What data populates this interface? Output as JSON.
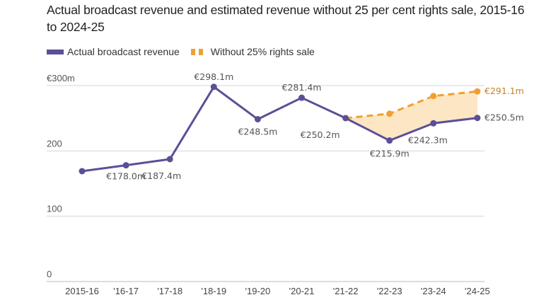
{
  "chart_data": {
    "type": "line",
    "title": "Actual broadcast revenue and estimated revenue without 25 per cent rights sale, 2015-16 to 2024-25",
    "xlabel": "",
    "ylabel": "",
    "categories": [
      "2015-16",
      "'16-17",
      "'17-18",
      "'18-19",
      "'19-20",
      "'20-21",
      "'21-22",
      "'22-23",
      "'23-24",
      "'24-25"
    ],
    "ylim": [
      0,
      300
    ],
    "yticks": [
      0,
      100,
      200,
      300
    ],
    "ytick_labels": [
      "0",
      "100",
      "200",
      "€300m"
    ],
    "grid": true,
    "legend_position": "top-left",
    "series": [
      {
        "name": "Actual broadcast revenue",
        "color": "#5b4f96",
        "style": "solid",
        "values": [
          169,
          178.0,
          187.4,
          298.1,
          248.5,
          281.4,
          250.2,
          215.9,
          242.3,
          250.5
        ],
        "labels": [
          null,
          "€178.0m",
          "€187.4m",
          "€298.1m",
          "€248.5m",
          "€281.4m",
          "€250.2m",
          "€215.9m",
          "€242.3m",
          "€250.5m"
        ]
      },
      {
        "name": "Without 25% rights sale",
        "color": "#f0a030",
        "style": "dashed",
        "start_index": 6,
        "values": [
          250.2,
          257,
          284,
          291.1
        ],
        "labels": [
          null,
          null,
          null,
          "€291.1m"
        ]
      }
    ],
    "shaded_area": {
      "between": [
        "Without 25% rights sale",
        "Actual broadcast revenue"
      ],
      "color": "#fde3bd"
    }
  }
}
